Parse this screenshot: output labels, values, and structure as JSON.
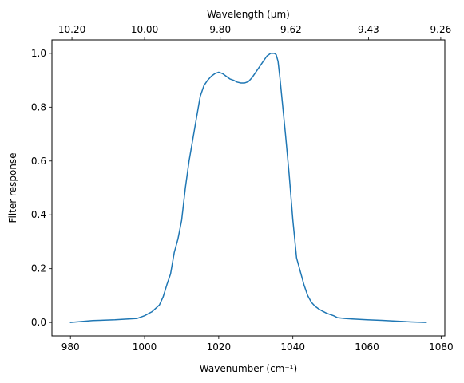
{
  "chart_data": {
    "type": "line",
    "title": "",
    "xlabel": "Wavenumber (cm⁻¹)",
    "ylabel": "Filter response",
    "top_xlabel": "Wavelength (μm)",
    "xlim": [
      975,
      1081
    ],
    "ylim": [
      -0.05,
      1.05
    ],
    "xticks": [
      980,
      1000,
      1020,
      1040,
      1060,
      1080
    ],
    "yticks": [
      0.0,
      0.2,
      0.4,
      0.6,
      0.8,
      1.0
    ],
    "top_ticks": [
      {
        "wavenumber": 980.4,
        "label": "10.20"
      },
      {
        "wavenumber": 1000.0,
        "label": "10.00"
      },
      {
        "wavenumber": 1020.4,
        "label": "9.80"
      },
      {
        "wavenumber": 1039.5,
        "label": "9.62"
      },
      {
        "wavenumber": 1060.4,
        "label": "9.43"
      },
      {
        "wavenumber": 1079.9,
        "label": "9.26"
      }
    ],
    "grid": false,
    "series": [
      {
        "color": "#1f77b4",
        "x": [
          980,
          986,
          992,
          998,
          1000,
          1002,
          1004,
          1005,
          1006,
          1007,
          1008,
          1009,
          1010,
          1011,
          1012,
          1013,
          1014,
          1015,
          1016,
          1017,
          1018,
          1019,
          1020,
          1021,
          1022,
          1023,
          1024,
          1025,
          1026,
          1027,
          1028,
          1029,
          1030,
          1031,
          1032,
          1033,
          1034,
          1034.5,
          1035,
          1035.5,
          1036,
          1036.5,
          1037,
          1038,
          1039,
          1040,
          1041,
          1042,
          1043,
          1044,
          1045,
          1046,
          1047,
          1048,
          1049,
          1050,
          1051,
          1052,
          1054,
          1056,
          1060,
          1064,
          1068,
          1072,
          1076
        ],
        "y": [
          0.0,
          0.007,
          0.01,
          0.015,
          0.025,
          0.04,
          0.065,
          0.095,
          0.14,
          0.18,
          0.26,
          0.31,
          0.38,
          0.5,
          0.6,
          0.68,
          0.76,
          0.84,
          0.88,
          0.9,
          0.915,
          0.925,
          0.93,
          0.925,
          0.915,
          0.905,
          0.9,
          0.893,
          0.89,
          0.89,
          0.895,
          0.91,
          0.93,
          0.95,
          0.97,
          0.99,
          1.0,
          1.0,
          1.0,
          0.995,
          0.97,
          0.91,
          0.84,
          0.7,
          0.55,
          0.38,
          0.24,
          0.19,
          0.14,
          0.1,
          0.075,
          0.06,
          0.05,
          0.042,
          0.035,
          0.03,
          0.025,
          0.018,
          0.015,
          0.013,
          0.01,
          0.008,
          0.005,
          0.002,
          0.0
        ]
      }
    ]
  }
}
